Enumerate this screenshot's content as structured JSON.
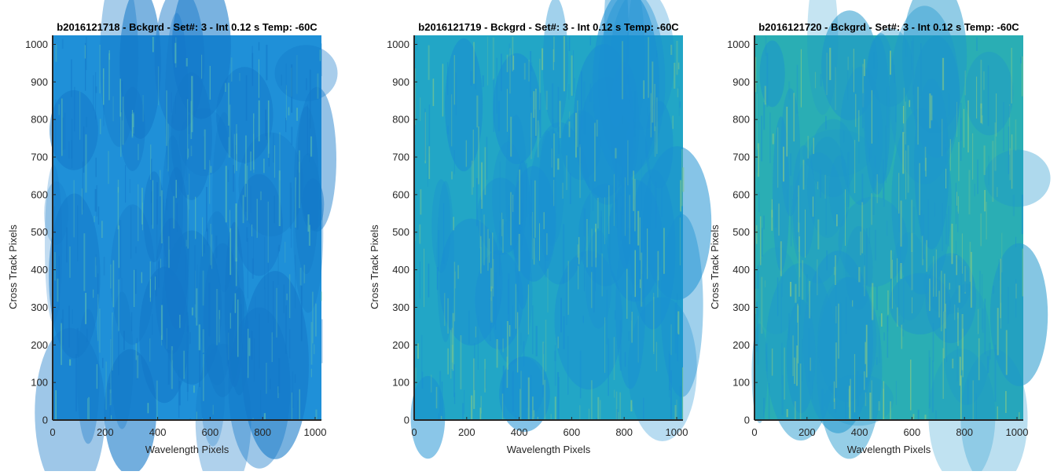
{
  "chart_data": [
    {
      "type": "heatmap",
      "title": "b2016121718 - Bckgrd - Set#: 3 - Int 0.12 s Temp: -60C",
      "xlabel": "Wavelength Pixels",
      "ylabel": "Cross Track Pixels",
      "xlim": [
        0,
        1024
      ],
      "ylim": [
        0,
        1024
      ],
      "xticks": [
        0,
        200,
        400,
        600,
        800,
        1000
      ],
      "yticks": [
        0,
        100,
        200,
        300,
        400,
        500,
        600,
        700,
        800,
        900,
        1000
      ],
      "colormap": "parula",
      "colors": {
        "base": "#1f90d8",
        "dark": "#1478c8",
        "streak": "#5fc0b0"
      }
    },
    {
      "type": "heatmap",
      "title": "b2016121719 - Bckgrd - Set#: 3 - Int 0.12 s Temp: -60C",
      "xlabel": "Wavelength Pixels",
      "ylabel": "Cross Track Pixels",
      "xlim": [
        0,
        1024
      ],
      "ylim": [
        0,
        1024
      ],
      "xticks": [
        0,
        200,
        400,
        600,
        800,
        1000
      ],
      "yticks": [
        0,
        100,
        200,
        300,
        400,
        500,
        600,
        700,
        800,
        900,
        1000
      ],
      "colormap": "parula",
      "colors": {
        "base": "#22a6c6",
        "dark": "#1a8fd2",
        "streak": "#7cc88e"
      }
    },
    {
      "type": "heatmap",
      "title": "b2016121720 - Bckgrd - Set#: 3 - Int 0.12 s Temp: -60C",
      "xlabel": "Wavelength Pixels",
      "ylabel": "Cross Track Pixels",
      "xlim": [
        0,
        1024
      ],
      "ylim": [
        0,
        1024
      ],
      "xticks": [
        0,
        200,
        400,
        600,
        800,
        1000
      ],
      "yticks": [
        0,
        100,
        200,
        300,
        400,
        500,
        600,
        700,
        800,
        900,
        1000
      ],
      "colormap": "parula",
      "colors": {
        "base": "#2aaeb4",
        "dark": "#1e96cc",
        "streak": "#8ccc82"
      }
    }
  ]
}
